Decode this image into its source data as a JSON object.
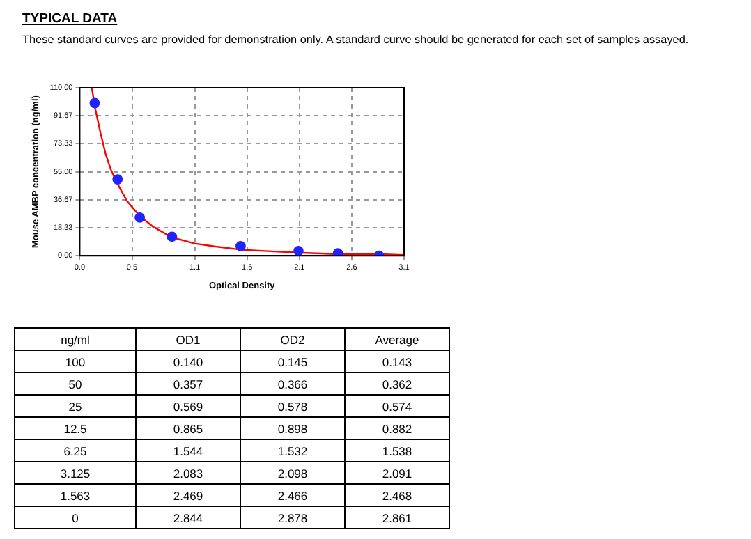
{
  "chart_data": [
    {
      "type": "scatter",
      "title": "TYPICAL DATA",
      "subtitle": "These standard curves are provided for demonstration only. A standard curve should be generated for each set of samples assayed.",
      "xlabel": "Optical Density",
      "ylabel": "Mouse AMBP concentration (ng/ml)",
      "xlim": [
        0,
        3.1
      ],
      "ylim": [
        0,
        110
      ],
      "xticks": [
        {
          "value": 0,
          "label": "0.0"
        },
        {
          "value": 0.5,
          "label": "0.5"
        },
        {
          "value": 1.1,
          "label": "1.1"
        },
        {
          "value": 1.6,
          "label": "1.6"
        },
        {
          "value": 2.1,
          "label": "2.1"
        },
        {
          "value": 2.6,
          "label": "2.6"
        },
        {
          "value": 3.1,
          "label": "3.1"
        }
      ],
      "yticks": [
        {
          "value": 0,
          "label": "0.00"
        },
        {
          "value": 18.33,
          "label": "18.33"
        },
        {
          "value": 36.67,
          "label": "36.67"
        },
        {
          "value": 55,
          "label": "55.00"
        },
        {
          "value": 73.33,
          "label": "73.33"
        },
        {
          "value": 91.67,
          "label": "91.67"
        },
        {
          "value": 110,
          "label": "110.00"
        }
      ],
      "grid": true,
      "series": [
        {
          "type": "scatter",
          "marker": "circle",
          "color": "#2222ff",
          "x": [
            0.143,
            0.362,
            0.574,
            0.882,
            1.538,
            2.091,
            2.468,
            2.861
          ],
          "values": [
            100,
            50,
            25,
            12.5,
            6.25,
            3.125,
            1.563,
            0
          ]
        },
        {
          "type": "line",
          "line_style": "solid",
          "color": "#ff0000",
          "x": [
            0.116,
            0.143,
            0.2,
            0.25,
            0.3,
            0.362,
            0.45,
            0.574,
            0.7,
            0.882,
            1.1,
            1.3,
            1.538,
            1.8,
            2.091,
            2.468,
            2.861,
            3.1
          ],
          "values": [
            110,
            98,
            80,
            66,
            56,
            47,
            36,
            26,
            19,
            12,
            8,
            6,
            4,
            3,
            2,
            1,
            1,
            0.5
          ]
        }
      ]
    },
    {
      "type": "other",
      "categories": [
        "ng/ml",
        "OD1",
        "OD2",
        "Average"
      ],
      "cell_labels": [
        [
          "100",
          "0.140",
          "0.145",
          "0.143"
        ],
        [
          "50",
          "0.357",
          "0.366",
          "0.362"
        ],
        [
          "25",
          "0.569",
          "0.578",
          "0.574"
        ],
        [
          "12.5",
          "0.865",
          "0.898",
          "0.882"
        ],
        [
          "6.25",
          "1.544",
          "1.532",
          "1.538"
        ],
        [
          "3.125",
          "2.083",
          "2.098",
          "2.091"
        ],
        [
          "1.563",
          "2.469",
          "2.466",
          "2.468"
        ],
        [
          "0",
          "2.844",
          "2.878",
          "2.861"
        ]
      ]
    }
  ]
}
